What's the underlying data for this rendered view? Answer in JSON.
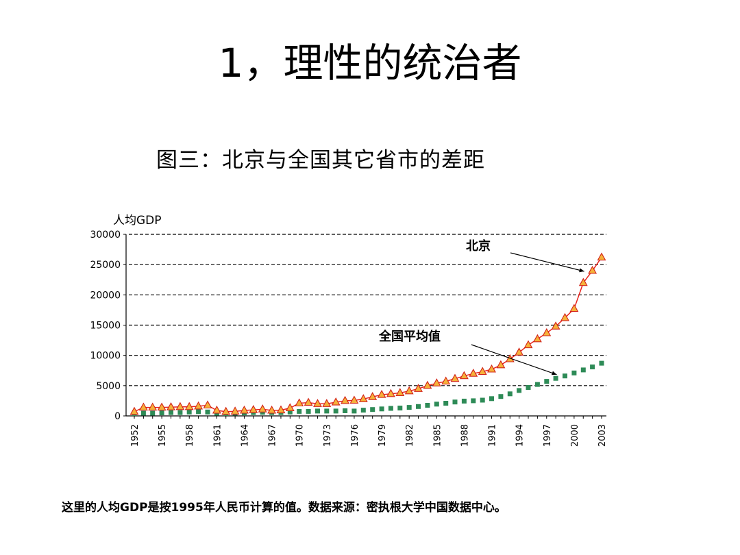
{
  "slide": {
    "title": "1，理性的统治者",
    "footnote": "这里的人均GDP是按1995年人民币计算的值。数据来源：密执根大学中国数据中心。"
  },
  "chart_data": {
    "type": "line",
    "title": "图三：北京与全国其它省市的差距",
    "ylabel": "人均GDP",
    "xlabel": "",
    "ylim": [
      0,
      30000
    ],
    "yticks": [
      0,
      5000,
      10000,
      15000,
      20000,
      25000,
      30000
    ],
    "xticks": [
      1952,
      1955,
      1958,
      1961,
      1964,
      1967,
      1970,
      1973,
      1976,
      1979,
      1982,
      1985,
      1988,
      1991,
      1994,
      1997,
      2000,
      2003
    ],
    "grid": "horizontal-dashed",
    "x": [
      1952,
      1953,
      1954,
      1955,
      1956,
      1957,
      1958,
      1959,
      1960,
      1961,
      1962,
      1963,
      1964,
      1965,
      1966,
      1967,
      1968,
      1969,
      1970,
      1971,
      1972,
      1973,
      1974,
      1975,
      1976,
      1977,
      1978,
      1979,
      1980,
      1981,
      1982,
      1983,
      1984,
      1985,
      1986,
      1987,
      1988,
      1989,
      1990,
      1991,
      1992,
      1993,
      1994,
      1995,
      1996,
      1997,
      1998,
      1999,
      2000,
      2001,
      2002,
      2003
    ],
    "series": [
      {
        "name": "北京",
        "color": "#e8231c",
        "marker": "triangle-orange",
        "values": [
          700,
          1400,
          1400,
          1400,
          1450,
          1500,
          1500,
          1600,
          1750,
          900,
          700,
          750,
          900,
          1000,
          1100,
          900,
          950,
          1300,
          2100,
          2200,
          2000,
          2000,
          2250,
          2500,
          2550,
          2800,
          3150,
          3500,
          3650,
          3800,
          4100,
          4500,
          5000,
          5400,
          5700,
          6150,
          6600,
          7000,
          7300,
          7700,
          8400,
          9400,
          10500,
          11700,
          12700,
          13700,
          14800,
          16200,
          17700,
          22000,
          24000,
          26200
        ]
      },
      {
        "name": "全国平均值",
        "color": "#2e8b57",
        "marker": "square-green",
        "values": [
          400,
          450,
          450,
          500,
          550,
          550,
          650,
          700,
          650,
          450,
          400,
          450,
          500,
          550,
          600,
          550,
          550,
          650,
          750,
          750,
          800,
          800,
          800,
          850,
          800,
          950,
          1050,
          1150,
          1250,
          1300,
          1400,
          1550,
          1750,
          1950,
          2100,
          2300,
          2450,
          2500,
          2600,
          2850,
          3200,
          3650,
          4200,
          4700,
          5200,
          5700,
          6200,
          6600,
          7100,
          7600,
          8100,
          8700
        ]
      }
    ],
    "annotations": [
      {
        "label": "北京",
        "series": 0,
        "target_year": 2002
      },
      {
        "label": "全国平均值",
        "series": 1,
        "target_year": 1999
      }
    ]
  }
}
